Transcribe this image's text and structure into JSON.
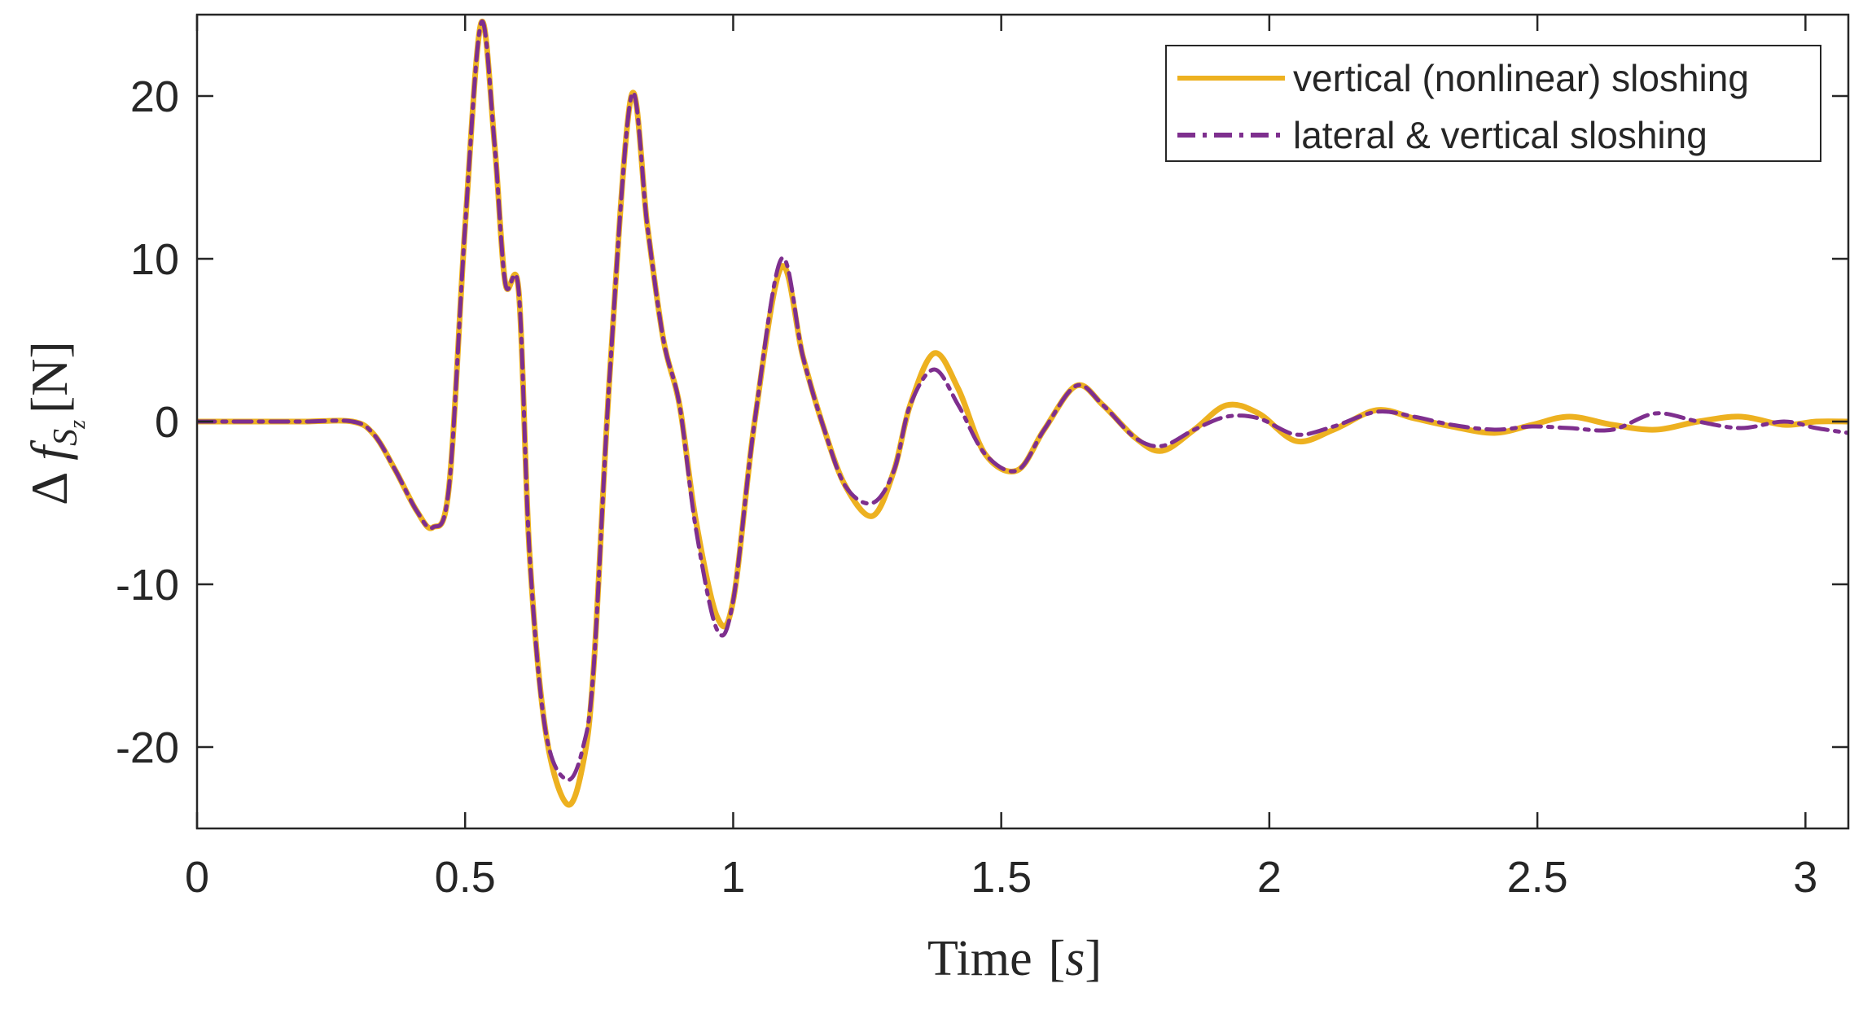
{
  "chart_data": {
    "type": "line",
    "title": "",
    "xlabel_text": "Time",
    "xlabel_unit": "s",
    "ylabel_delta": "Δ",
    "ylabel_symbol": "f",
    "ylabel_sub": "S",
    "ylabel_subsub": "z",
    "ylabel_unit": "N",
    "xlim": [
      0,
      3.08
    ],
    "ylim": [
      -25,
      25
    ],
    "xticks": [
      0,
      0.5,
      1,
      1.5,
      2,
      2.5,
      3
    ],
    "xtick_labels": [
      "0",
      "0.5",
      "1",
      "1.5",
      "2",
      "2.5",
      "3"
    ],
    "yticks": [
      20,
      10,
      0,
      -10,
      -20
    ],
    "ytick_labels": [
      "20",
      "10",
      "0",
      "-10",
      "-20"
    ],
    "grid": false,
    "legend_position": "top-right",
    "series": [
      {
        "name": "vertical (nonlinear) sloshing",
        "color": "#EDB120",
        "style": "solid",
        "x": [
          0,
          0.1,
          0.2,
          0.29,
          0.33,
          0.37,
          0.41,
          0.44,
          0.47,
          0.5,
          0.53,
          0.555,
          0.575,
          0.6,
          0.62,
          0.65,
          0.69,
          0.72,
          0.74,
          0.77,
          0.81,
          0.84,
          0.87,
          0.9,
          0.93,
          0.97,
          1.0,
          1.04,
          1.09,
          1.13,
          1.17,
          1.21,
          1.26,
          1.3,
          1.33,
          1.375,
          1.42,
          1.47,
          1.53,
          1.58,
          1.64,
          1.69,
          1.75,
          1.8,
          1.86,
          1.92,
          1.98,
          2.05,
          2.12,
          2.2,
          2.27,
          2.34,
          2.42,
          2.49,
          2.56,
          2.64,
          2.72,
          2.8,
          2.88,
          2.96,
          3.02,
          3.08
        ],
        "y": [
          0,
          0,
          0,
          0,
          -0.8,
          -3,
          -5.5,
          -6.5,
          -4,
          12,
          24.5,
          17,
          8.5,
          8,
          -8,
          -19,
          -23.5,
          -21,
          -15,
          3,
          20,
          12,
          5,
          1,
          -6,
          -12,
          -11,
          0,
          9.5,
          4,
          -0.5,
          -4,
          -5.8,
          -3,
          1,
          4.2,
          2,
          -2,
          -3,
          -0.5,
          2.2,
          1,
          -1,
          -1.8,
          -0.5,
          1,
          0.5,
          -1.2,
          -0.5,
          0.7,
          0.2,
          -0.3,
          -0.7,
          -0.2,
          0.3,
          -0.2,
          -0.5,
          0,
          0.3,
          -0.2,
          0,
          0
        ]
      },
      {
        "name": "lateral & vertical sloshing",
        "color": "#7E2F8E",
        "style": "dashdot",
        "x": [
          0,
          0.1,
          0.2,
          0.29,
          0.33,
          0.37,
          0.41,
          0.44,
          0.47,
          0.5,
          0.53,
          0.555,
          0.575,
          0.6,
          0.62,
          0.65,
          0.69,
          0.72,
          0.74,
          0.77,
          0.81,
          0.84,
          0.87,
          0.9,
          0.93,
          0.97,
          1.0,
          1.04,
          1.09,
          1.13,
          1.17,
          1.21,
          1.26,
          1.3,
          1.33,
          1.375,
          1.42,
          1.47,
          1.53,
          1.58,
          1.64,
          1.69,
          1.75,
          1.8,
          1.86,
          1.92,
          1.98,
          2.05,
          2.12,
          2.2,
          2.27,
          2.34,
          2.42,
          2.49,
          2.56,
          2.64,
          2.72,
          2.8,
          2.88,
          2.96,
          3.02,
          3.08
        ],
        "y": [
          0,
          0,
          0,
          0,
          -0.8,
          -3,
          -5.5,
          -6.5,
          -4,
          12,
          24.5,
          17,
          8.5,
          8,
          -8,
          -19,
          -22,
          -20,
          -15,
          3,
          20,
          12,
          5,
          1,
          -6.5,
          -12.8,
          -11,
          0,
          10,
          4,
          -0.5,
          -4,
          -5,
          -3,
          1,
          3.2,
          1,
          -2,
          -3,
          -0.5,
          2.2,
          1,
          -1,
          -1.5,
          -0.5,
          0.3,
          0.2,
          -0.8,
          -0.3,
          0.6,
          0.3,
          -0.2,
          -0.5,
          -0.3,
          -0.4,
          -0.5,
          0.5,
          0,
          -0.4,
          0,
          -0.4,
          -0.7
        ]
      }
    ]
  }
}
